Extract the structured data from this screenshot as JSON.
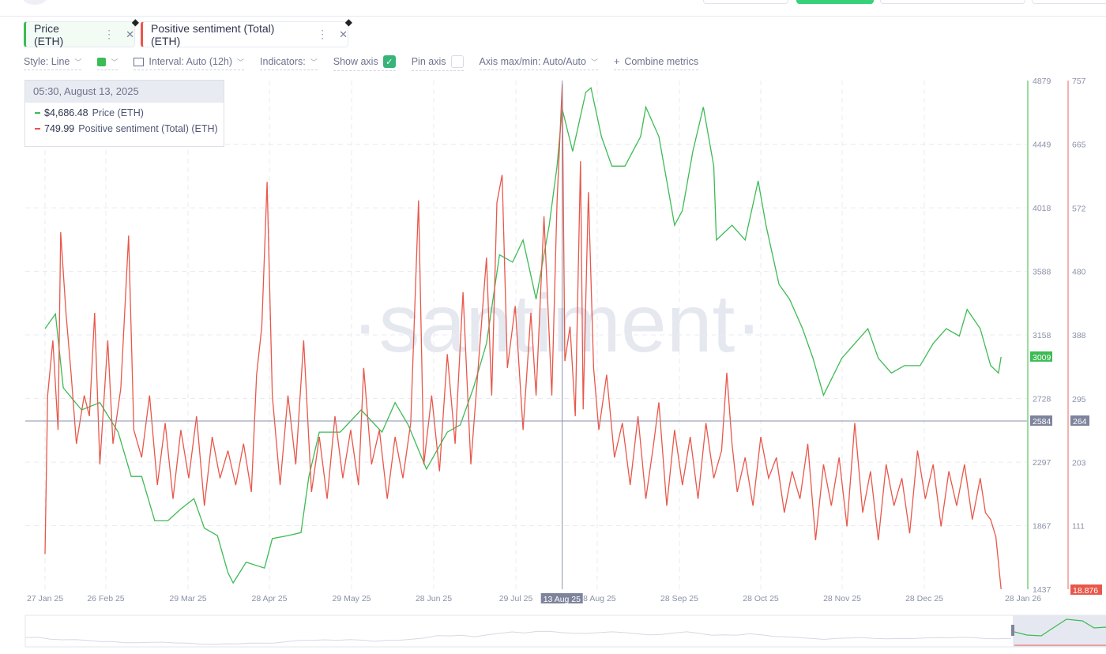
{
  "metrics": [
    {
      "label": "Price (ETH)",
      "color": "#37b44a",
      "menu_icon": "more-vertical-icon",
      "close_icon": "close-icon",
      "asset_icon": "ethereum-icon"
    },
    {
      "label": "Positive sentiment (Total) (ETH)",
      "color": "#e8574a",
      "menu_icon": "more-vertical-icon",
      "close_icon": "close-icon",
      "asset_icon": "ethereum-icon"
    }
  ],
  "options": {
    "style": "Style: Line",
    "interval": "Interval: Auto (12h)",
    "indicators": "Indicators:",
    "show_axis": "Show axis",
    "show_axis_checked": true,
    "pin_axis": "Pin axis",
    "pin_axis_checked": false,
    "axis_maxmin": "Axis max/min: Auto/Auto",
    "combine": "Combine metrics",
    "color_swatch": "#3dbb54"
  },
  "tooltip": {
    "date": "05:30, August 13, 2025",
    "price_value": "$4,686.48",
    "price_label": "Price (ETH)",
    "sentiment_value": "749.99",
    "sentiment_label": "Positive sentiment (Total) (ETH)"
  },
  "watermark": "·santiment·",
  "chart_data": {
    "type": "line",
    "x_ticks": [
      "27 Jan 25",
      "26 Feb 25",
      "29 Mar 25",
      "28 Apr 25",
      "29 May 25",
      "28 Jun 25",
      "29 Jul 25",
      "28 Aug 25",
      "28 Sep 25",
      "28 Oct 25",
      "28 Nov 25",
      "28 Dec 25",
      "28 Jan 26"
    ],
    "crosshair_x_label": "13 Aug 25",
    "price_axis": {
      "ticks": [
        "4879",
        "4449",
        "4018",
        "3588",
        "3158",
        "2728",
        "2297",
        "1867",
        "1437"
      ],
      "range": [
        1437,
        4879
      ],
      "last_value": "3009",
      "crosshair_value": "2584"
    },
    "sentiment_axis": {
      "ticks": [
        "757",
        "665",
        "572",
        "480",
        "388",
        "295",
        "203",
        "111"
      ],
      "range": [
        18.876,
        757
      ],
      "last_value": "18.876",
      "crosshair_value": "264"
    },
    "grid": true,
    "series": [
      {
        "name": "Price (ETH)",
        "axis": "price",
        "color": "#3dbb54",
        "points": [
          [
            "2025-01-27",
            3200
          ],
          [
            "2025-01-31",
            3300
          ],
          [
            "2025-02-03",
            2800
          ],
          [
            "2025-02-10",
            2650
          ],
          [
            "2025-02-17",
            2700
          ],
          [
            "2025-02-24",
            2500
          ],
          [
            "2025-03-01",
            2200
          ],
          [
            "2025-03-05",
            2200
          ],
          [
            "2025-03-10",
            1900
          ],
          [
            "2025-03-15",
            1900
          ],
          [
            "2025-03-20",
            1980
          ],
          [
            "2025-03-25",
            2050
          ],
          [
            "2025-03-29",
            1850
          ],
          [
            "2025-04-03",
            1800
          ],
          [
            "2025-04-07",
            1550
          ],
          [
            "2025-04-09",
            1480
          ],
          [
            "2025-04-14",
            1620
          ],
          [
            "2025-04-21",
            1580
          ],
          [
            "2025-04-24",
            1780
          ],
          [
            "2025-04-30",
            1800
          ],
          [
            "2025-05-05",
            1820
          ],
          [
            "2025-05-08",
            2200
          ],
          [
            "2025-05-12",
            2500
          ],
          [
            "2025-05-20",
            2500
          ],
          [
            "2025-05-28",
            2650
          ],
          [
            "2025-06-05",
            2500
          ],
          [
            "2025-06-10",
            2700
          ],
          [
            "2025-06-15",
            2550
          ],
          [
            "2025-06-22",
            2250
          ],
          [
            "2025-06-30",
            2500
          ],
          [
            "2025-07-05",
            2550
          ],
          [
            "2025-07-10",
            2800
          ],
          [
            "2025-07-15",
            3100
          ],
          [
            "2025-07-20",
            3700
          ],
          [
            "2025-07-25",
            3650
          ],
          [
            "2025-07-29",
            3800
          ],
          [
            "2025-08-03",
            3400
          ],
          [
            "2025-08-08",
            3900
          ],
          [
            "2025-08-11",
            4300
          ],
          [
            "2025-08-13",
            4686
          ],
          [
            "2025-08-17",
            4400
          ],
          [
            "2025-08-22",
            4800
          ],
          [
            "2025-08-24",
            4830
          ],
          [
            "2025-08-28",
            4500
          ],
          [
            "2025-09-01",
            4300
          ],
          [
            "2025-09-06",
            4300
          ],
          [
            "2025-09-12",
            4500
          ],
          [
            "2025-09-14",
            4700
          ],
          [
            "2025-09-19",
            4500
          ],
          [
            "2025-09-22",
            4200
          ],
          [
            "2025-09-25",
            3900
          ],
          [
            "2025-09-28",
            4000
          ],
          [
            "2025-10-02",
            4400
          ],
          [
            "2025-10-06",
            4700
          ],
          [
            "2025-10-10",
            4300
          ],
          [
            "2025-10-11",
            3800
          ],
          [
            "2025-10-17",
            3900
          ],
          [
            "2025-10-22",
            3800
          ],
          [
            "2025-10-27",
            4200
          ],
          [
            "2025-10-30",
            3900
          ],
          [
            "2025-11-04",
            3500
          ],
          [
            "2025-11-08",
            3400
          ],
          [
            "2025-11-13",
            3200
          ],
          [
            "2025-11-17",
            3000
          ],
          [
            "2025-11-21",
            2750
          ],
          [
            "2025-11-28",
            3000
          ],
          [
            "2025-12-03",
            3100
          ],
          [
            "2025-12-08",
            3200
          ],
          [
            "2025-12-12",
            3000
          ],
          [
            "2025-12-17",
            2900
          ],
          [
            "2025-12-22",
            2950
          ],
          [
            "2025-12-28",
            2950
          ],
          [
            "2026-01-02",
            3100
          ],
          [
            "2026-01-07",
            3200
          ],
          [
            "2026-01-12",
            3150
          ],
          [
            "2026-01-15",
            3330
          ],
          [
            "2026-01-20",
            3200
          ],
          [
            "2026-01-24",
            2950
          ],
          [
            "2026-01-27",
            2900
          ],
          [
            "2026-01-28",
            3009
          ]
        ]
      },
      {
        "name": "Positive sentiment (Total) (ETH)",
        "axis": "sentiment",
        "color": "#e8574a",
        "points": [
          [
            "2025-01-27",
            70
          ],
          [
            "2025-01-28",
            300
          ],
          [
            "2025-01-30",
            380
          ],
          [
            "2025-02-01",
            250
          ],
          [
            "2025-02-02",
            537
          ],
          [
            "2025-02-04",
            420
          ],
          [
            "2025-02-06",
            330
          ],
          [
            "2025-02-08",
            230
          ],
          [
            "2025-02-11",
            300
          ],
          [
            "2025-02-13",
            270
          ],
          [
            "2025-02-15",
            420
          ],
          [
            "2025-02-17",
            200
          ],
          [
            "2025-02-20",
            380
          ],
          [
            "2025-02-22",
            230
          ],
          [
            "2025-02-25",
            310
          ],
          [
            "2025-02-28",
            532
          ],
          [
            "2025-03-02",
            250
          ],
          [
            "2025-03-05",
            210
          ],
          [
            "2025-03-08",
            300
          ],
          [
            "2025-03-11",
            170
          ],
          [
            "2025-03-14",
            260
          ],
          [
            "2025-03-17",
            150
          ],
          [
            "2025-03-20",
            250
          ],
          [
            "2025-03-23",
            180
          ],
          [
            "2025-03-26",
            270
          ],
          [
            "2025-03-29",
            140
          ],
          [
            "2025-04-01",
            240
          ],
          [
            "2025-04-04",
            180
          ],
          [
            "2025-04-07",
            220
          ],
          [
            "2025-04-10",
            170
          ],
          [
            "2025-04-13",
            230
          ],
          [
            "2025-04-16",
            160
          ],
          [
            "2025-04-18",
            330
          ],
          [
            "2025-04-20",
            400
          ],
          [
            "2025-04-22",
            610
          ],
          [
            "2025-04-24",
            300
          ],
          [
            "2025-04-27",
            170
          ],
          [
            "2025-04-30",
            300
          ],
          [
            "2025-05-03",
            200
          ],
          [
            "2025-05-06",
            380
          ],
          [
            "2025-05-09",
            160
          ],
          [
            "2025-05-12",
            240
          ],
          [
            "2025-05-15",
            150
          ],
          [
            "2025-05-18",
            270
          ],
          [
            "2025-05-21",
            180
          ],
          [
            "2025-05-24",
            250
          ],
          [
            "2025-05-27",
            170
          ],
          [
            "2025-05-29",
            340
          ],
          [
            "2025-06-01",
            200
          ],
          [
            "2025-06-04",
            250
          ],
          [
            "2025-06-07",
            150
          ],
          [
            "2025-06-10",
            240
          ],
          [
            "2025-06-13",
            180
          ],
          [
            "2025-06-16",
            260
          ],
          [
            "2025-06-19",
            583
          ],
          [
            "2025-06-21",
            200
          ],
          [
            "2025-06-24",
            300
          ],
          [
            "2025-06-27",
            190
          ],
          [
            "2025-06-30",
            360
          ],
          [
            "2025-07-03",
            230
          ],
          [
            "2025-07-06",
            450
          ],
          [
            "2025-07-09",
            200
          ],
          [
            "2025-07-12",
            350
          ],
          [
            "2025-07-15",
            500
          ],
          [
            "2025-07-17",
            300
          ],
          [
            "2025-07-19",
            580
          ],
          [
            "2025-07-21",
            620
          ],
          [
            "2025-07-23",
            340
          ],
          [
            "2025-07-26",
            430
          ],
          [
            "2025-07-29",
            250
          ],
          [
            "2025-08-01",
            420
          ],
          [
            "2025-08-03",
            300
          ],
          [
            "2025-08-06",
            560
          ],
          [
            "2025-08-09",
            300
          ],
          [
            "2025-08-11",
            580
          ],
          [
            "2025-08-13",
            752
          ],
          [
            "2025-08-14",
            350
          ],
          [
            "2025-08-16",
            400
          ],
          [
            "2025-08-18",
            270
          ],
          [
            "2025-08-20",
            640
          ],
          [
            "2025-08-21",
            280
          ],
          [
            "2025-08-23",
            595
          ],
          [
            "2025-08-25",
            340
          ],
          [
            "2025-08-27",
            250
          ],
          [
            "2025-08-30",
            330
          ],
          [
            "2025-09-02",
            210
          ],
          [
            "2025-09-05",
            260
          ],
          [
            "2025-09-08",
            170
          ],
          [
            "2025-09-11",
            270
          ],
          [
            "2025-09-14",
            150
          ],
          [
            "2025-09-17",
            230
          ],
          [
            "2025-09-19",
            290
          ],
          [
            "2025-09-22",
            140
          ],
          [
            "2025-09-25",
            250
          ],
          [
            "2025-09-28",
            170
          ],
          [
            "2025-10-01",
            240
          ],
          [
            "2025-10-04",
            150
          ],
          [
            "2025-10-07",
            260
          ],
          [
            "2025-10-10",
            180
          ],
          [
            "2025-10-13",
            220
          ],
          [
            "2025-10-15",
            333
          ],
          [
            "2025-10-17",
            230
          ],
          [
            "2025-10-19",
            160
          ],
          [
            "2025-10-22",
            210
          ],
          [
            "2025-10-25",
            140
          ],
          [
            "2025-10-28",
            240
          ],
          [
            "2025-10-31",
            180
          ],
          [
            "2025-11-03",
            210
          ],
          [
            "2025-11-06",
            130
          ],
          [
            "2025-11-09",
            190
          ],
          [
            "2025-11-12",
            150
          ],
          [
            "2025-11-15",
            230
          ],
          [
            "2025-11-18",
            90
          ],
          [
            "2025-11-21",
            200
          ],
          [
            "2025-11-24",
            140
          ],
          [
            "2025-11-27",
            210
          ],
          [
            "2025-11-30",
            110
          ],
          [
            "2025-12-03",
            260
          ],
          [
            "2025-12-06",
            130
          ],
          [
            "2025-12-09",
            190
          ],
          [
            "2025-12-12",
            90
          ],
          [
            "2025-12-15",
            200
          ],
          [
            "2025-12-18",
            140
          ],
          [
            "2025-12-21",
            180
          ],
          [
            "2025-12-24",
            100
          ],
          [
            "2025-12-27",
            220
          ],
          [
            "2025-12-30",
            150
          ],
          [
            "2026-01-02",
            200
          ],
          [
            "2026-01-05",
            110
          ],
          [
            "2026-01-08",
            190
          ],
          [
            "2026-01-11",
            140
          ],
          [
            "2026-01-14",
            200
          ],
          [
            "2026-01-17",
            120
          ],
          [
            "2026-01-20",
            180
          ],
          [
            "2026-01-22",
            130
          ],
          [
            "2026-01-24",
            120
          ],
          [
            "2026-01-26",
            95
          ],
          [
            "2026-01-28",
            19
          ]
        ]
      }
    ]
  }
}
